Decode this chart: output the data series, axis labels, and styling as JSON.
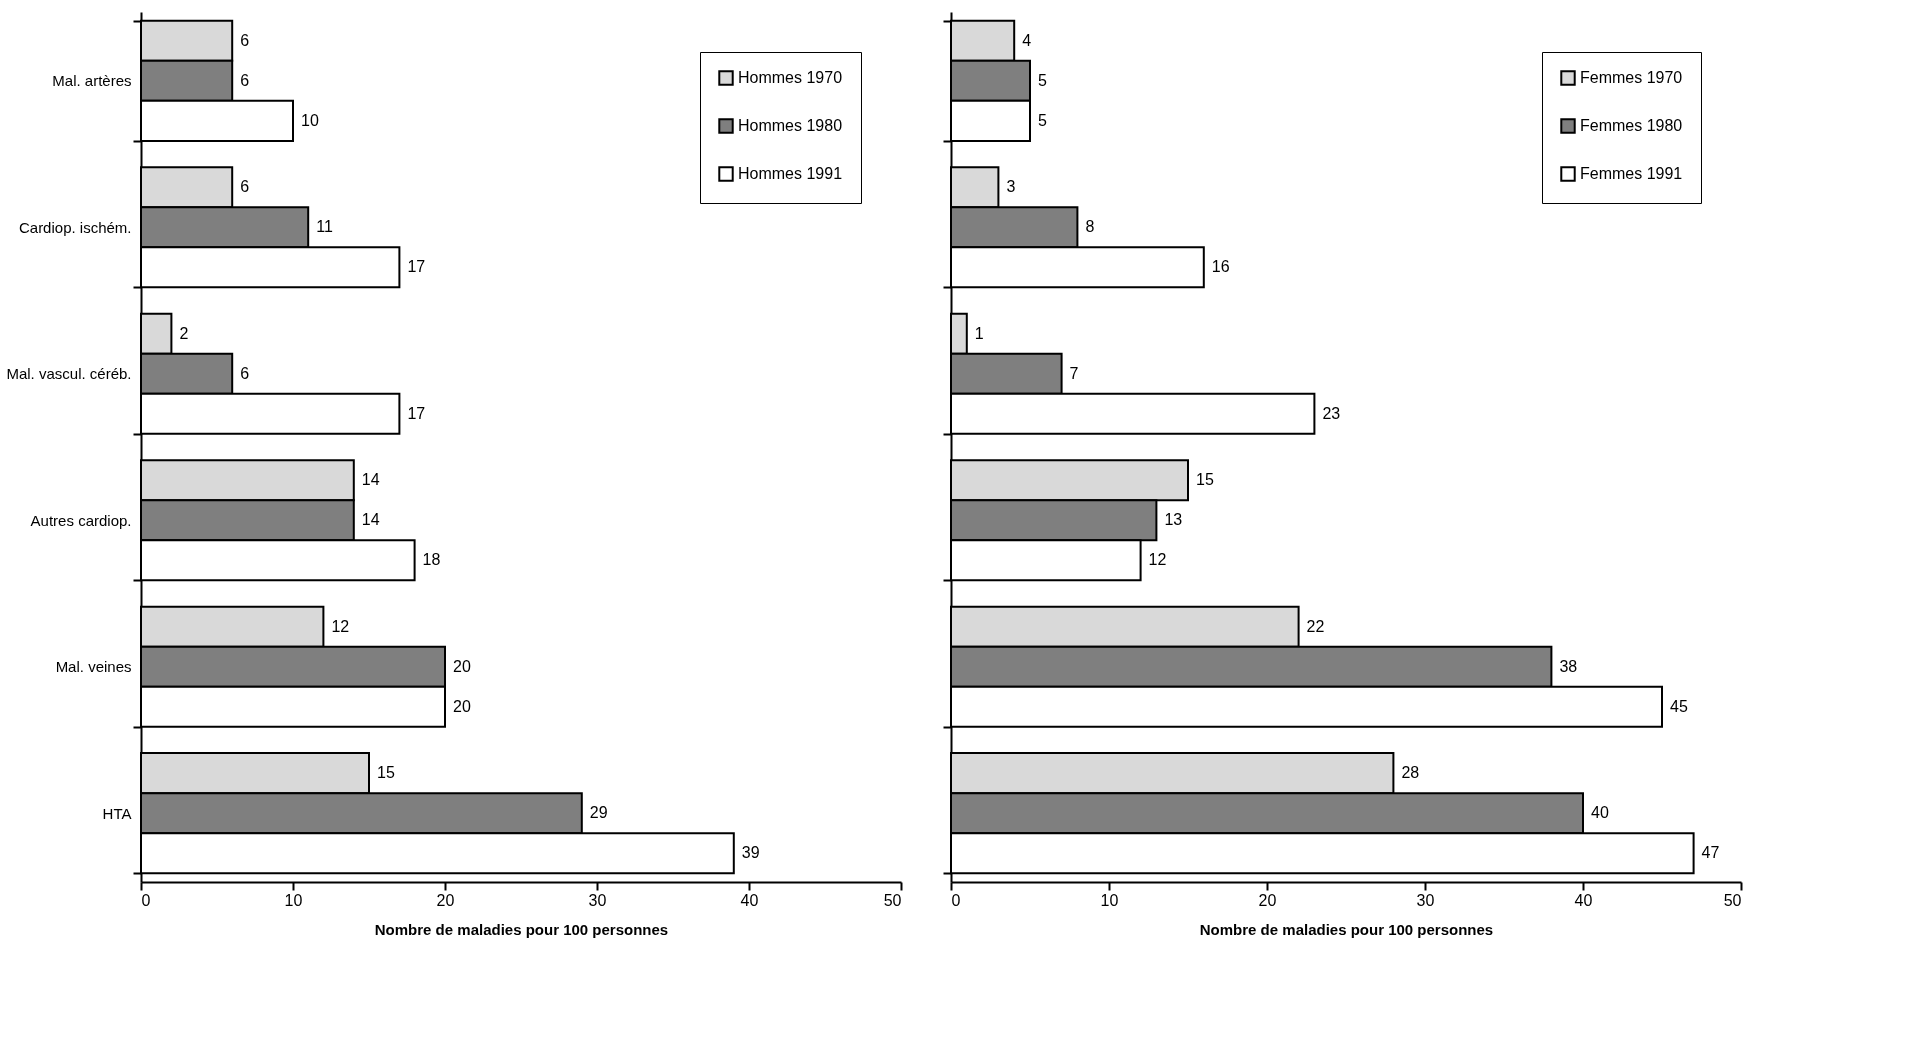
{
  "chart_data": [
    {
      "type": "bar",
      "orientation": "horizontal",
      "categories": [
        "Mal. artères",
        "Cardiop. ischém.",
        "Mal. vascul. céréb.",
        "Autres cardiop.",
        "Mal. veines",
        "HTA"
      ],
      "series": [
        {
          "name": "Hommes 1970",
          "color": "#d9d9d9",
          "values": [
            6,
            6,
            2,
            14,
            12,
            15
          ]
        },
        {
          "name": "Hommes 1980",
          "color": "#7f7f7f",
          "values": [
            6,
            11,
            6,
            14,
            20,
            29
          ]
        },
        {
          "name": "Hommes 1991",
          "color": "#ffffff",
          "values": [
            10,
            17,
            17,
            18,
            20,
            39
          ]
        }
      ],
      "xlabel": "Nombre de maladies pour 100 personnes",
      "xlim": [
        0,
        50
      ],
      "xticks": [
        0,
        10,
        20,
        30,
        40,
        50
      ],
      "data_labels": true,
      "grid": false,
      "legend": "top right"
    },
    {
      "type": "bar",
      "orientation": "horizontal",
      "categories": [
        null,
        null,
        null,
        null,
        null,
        null
      ],
      "series": [
        {
          "name": "Femmes 1970",
          "color": "#d9d9d9",
          "values": [
            4,
            3,
            1,
            15,
            22,
            28
          ]
        },
        {
          "name": "Femmes 1980",
          "color": "#7f7f7f",
          "values": [
            5,
            8,
            7,
            13,
            38,
            40
          ]
        },
        {
          "name": "Femmes 1991",
          "color": "#ffffff",
          "values": [
            5,
            16,
            23,
            12,
            45,
            47
          ]
        }
      ],
      "xlabel": "Nombre de maladies pour 100 personnes",
      "xlim": [
        0,
        50
      ],
      "xticks": [
        0,
        10,
        20,
        30,
        40,
        50
      ],
      "data_labels": true,
      "grid": false,
      "legend": "top right",
      "tick_labels": "x"
    }
  ]
}
